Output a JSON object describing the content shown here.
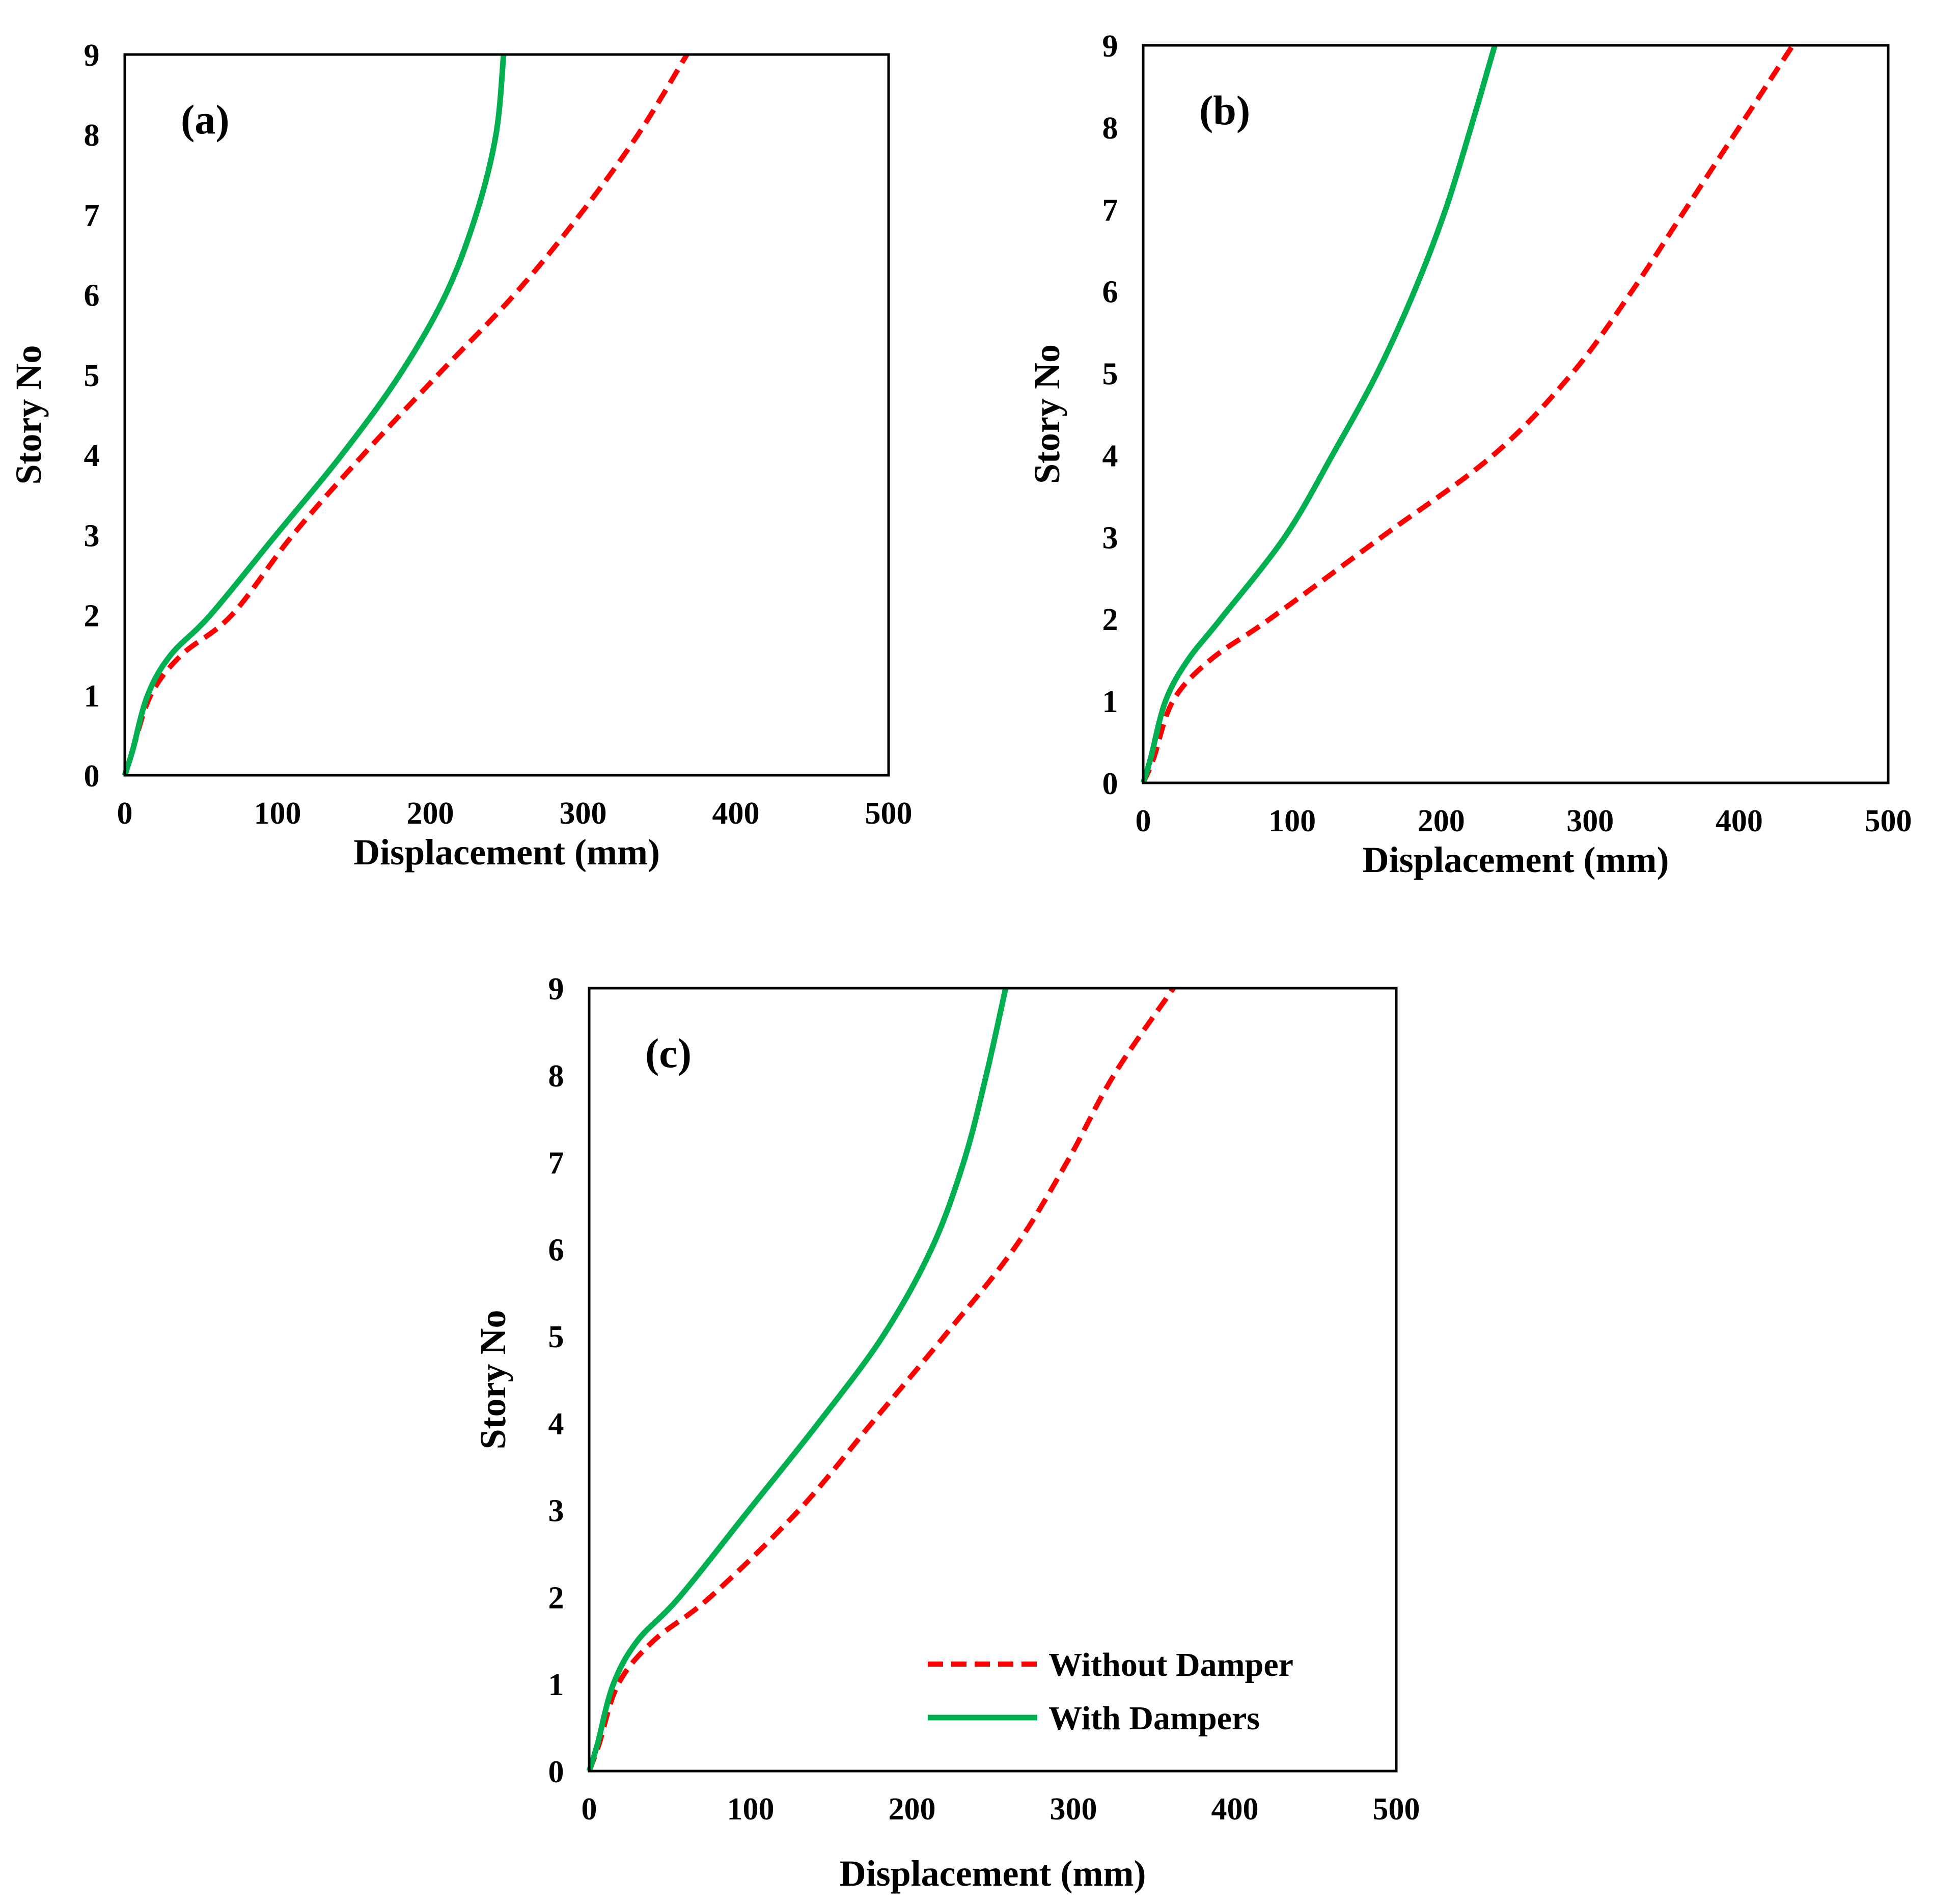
{
  "colors": {
    "without_damper": "#ff0000",
    "with_dampers": "#00b050",
    "frame": "#000000"
  },
  "legend": {
    "without_damper": "Without Damper",
    "with_dampers": "With Dampers"
  },
  "chart_data": [
    {
      "type": "line",
      "panel_label": "(a)",
      "xlabel": "Displacement (mm)",
      "ylabel": "Story No",
      "xlim": [
        0,
        500
      ],
      "ylim": [
        0,
        9
      ],
      "xticks": [
        0,
        100,
        200,
        300,
        400,
        500
      ],
      "yticks": [
        0,
        1,
        2,
        3,
        4,
        5,
        6,
        7,
        8,
        9
      ],
      "grid": false,
      "series": [
        {
          "name": "Without Damper",
          "style": "dashed",
          "points": [
            [
              0,
              0
            ],
            [
              5,
              0.3
            ],
            [
              17,
              1
            ],
            [
              37,
              1.5
            ],
            [
              70,
              2
            ],
            [
              110,
              3
            ],
            [
              156,
              4
            ],
            [
              205,
              5
            ],
            [
              255,
              6
            ],
            [
              298,
              7
            ],
            [
              336,
              8
            ],
            [
              368,
              9
            ]
          ]
        },
        {
          "name": "With Dampers",
          "style": "solid",
          "points": [
            [
              0,
              0
            ],
            [
              5,
              0.3
            ],
            [
              15,
              1
            ],
            [
              30,
              1.5
            ],
            [
              56,
              2
            ],
            [
              99,
              3
            ],
            [
              142,
              4
            ],
            [
              180,
              5
            ],
            [
              210,
              6
            ],
            [
              230,
              7
            ],
            [
              243,
              8
            ],
            [
              248,
              9
            ]
          ]
        }
      ]
    },
    {
      "type": "line",
      "panel_label": "(b)",
      "xlabel": "Displacement (mm)",
      "ylabel": "Story No",
      "xlim": [
        0,
        500
      ],
      "ylim": [
        0,
        9
      ],
      "xticks": [
        0,
        100,
        200,
        300,
        400,
        500
      ],
      "yticks": [
        0,
        1,
        2,
        3,
        4,
        5,
        6,
        7,
        8,
        9
      ],
      "grid": false,
      "series": [
        {
          "name": "Without Damper",
          "style": "dashed",
          "points": [
            [
              0,
              0
            ],
            [
              7,
              0.3
            ],
            [
              20,
              1
            ],
            [
              45,
              1.5
            ],
            [
              85,
              2
            ],
            [
              160,
              3
            ],
            [
              235,
              4
            ],
            [
              288,
              5
            ],
            [
              328,
              6
            ],
            [
              364,
              7
            ],
            [
              400,
              8
            ],
            [
              436,
              9
            ]
          ]
        },
        {
          "name": "With Dampers",
          "style": "solid",
          "points": [
            [
              0,
              0
            ],
            [
              5,
              0.3
            ],
            [
              15,
              1
            ],
            [
              30,
              1.5
            ],
            [
              52,
              2
            ],
            [
              95,
              3
            ],
            [
              127,
              4
            ],
            [
              157,
              5
            ],
            [
              182,
              6
            ],
            [
              203,
              7
            ],
            [
              220,
              8
            ],
            [
              236,
              9
            ]
          ]
        }
      ]
    },
    {
      "type": "line",
      "panel_label": "(c)",
      "xlabel": "Displacement (mm)",
      "ylabel": "Story No",
      "xlim": [
        0,
        500
      ],
      "ylim": [
        0,
        9
      ],
      "xticks": [
        0,
        100,
        200,
        300,
        400,
        500
      ],
      "yticks": [
        0,
        1,
        2,
        3,
        4,
        5,
        6,
        7,
        8,
        9
      ],
      "grid": false,
      "legend_position": "bottom-right",
      "series": [
        {
          "name": "Without Damper",
          "style": "dashed",
          "points": [
            [
              0,
              0
            ],
            [
              6,
              0.3
            ],
            [
              18,
              1
            ],
            [
              40,
              1.5
            ],
            [
              75,
              2
            ],
            [
              130,
              3
            ],
            [
              175,
              4
            ],
            [
              220,
              5
            ],
            [
              263,
              6
            ],
            [
              296,
              7
            ],
            [
              325,
              8
            ],
            [
              362,
              9
            ]
          ]
        },
        {
          "name": "With Dampers",
          "style": "solid",
          "points": [
            [
              0,
              0
            ],
            [
              5,
              0.3
            ],
            [
              15,
              1
            ],
            [
              30,
              1.5
            ],
            [
              56,
              2
            ],
            [
              99,
              3
            ],
            [
              142,
              4
            ],
            [
              182,
              5
            ],
            [
              212,
              6
            ],
            [
              232,
              7
            ],
            [
              246,
              8
            ],
            [
              258,
              9
            ]
          ]
        }
      ]
    }
  ]
}
